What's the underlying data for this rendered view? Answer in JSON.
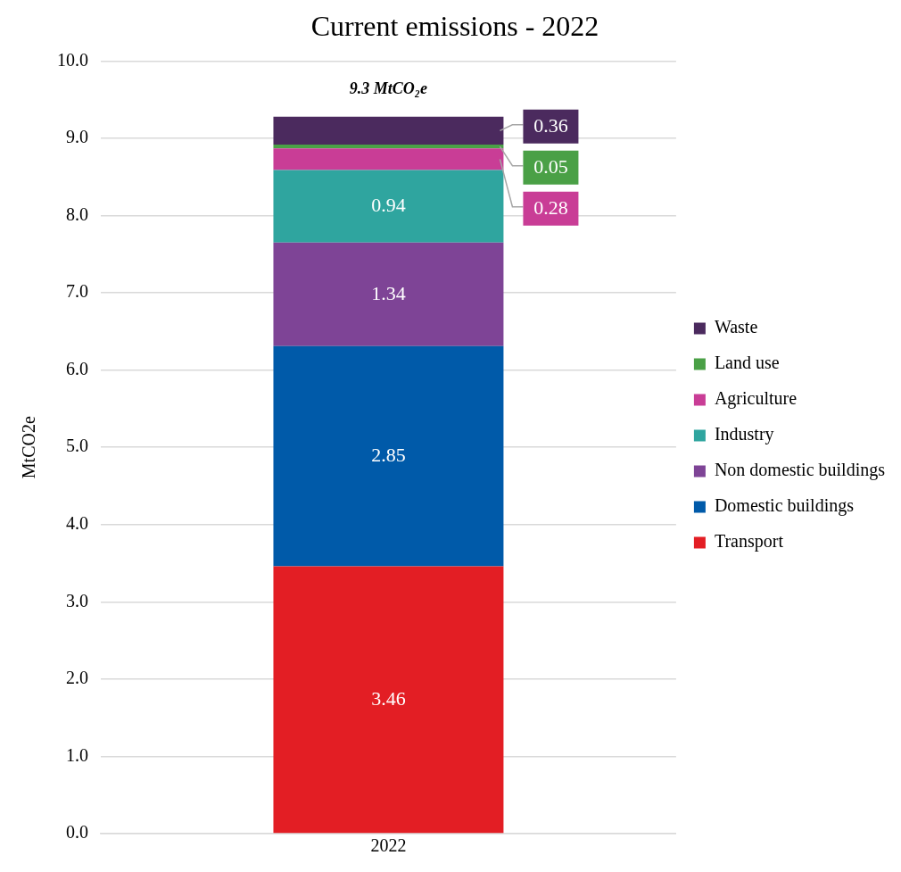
{
  "chart_data": {
    "type": "bar",
    "title": "Current emissions - 2022",
    "ylabel": "MtCO2e",
    "categories": [
      "2022"
    ],
    "stacked": true,
    "series": [
      {
        "name": "Transport",
        "color": "#e31e24",
        "values": [
          3.46
        ]
      },
      {
        "name": "Domestic buildings",
        "color": "#005aa9",
        "values": [
          2.85
        ]
      },
      {
        "name": "Non domestic buildings",
        "color": "#7e4496",
        "values": [
          1.34
        ]
      },
      {
        "name": "Industry",
        "color": "#2fa59f",
        "values": [
          0.94
        ]
      },
      {
        "name": "Agriculture",
        "color": "#c93d96",
        "values": [
          0.28
        ]
      },
      {
        "name": "Land use",
        "color": "#4aa046",
        "values": [
          0.05
        ]
      },
      {
        "name": "Waste",
        "color": "#4b2a5e",
        "values": [
          0.36
        ]
      }
    ],
    "ylim": [
      0,
      10
    ],
    "yticks": [
      {
        "value": 0,
        "label": "0.0"
      },
      {
        "value": 1,
        "label": "1.0"
      },
      {
        "value": 2,
        "label": "2.0"
      },
      {
        "value": 3,
        "label": "3.0"
      },
      {
        "value": 4,
        "label": "4.0"
      },
      {
        "value": 5,
        "label": "5.0"
      },
      {
        "value": 6,
        "label": "6.0"
      },
      {
        "value": 7,
        "label": "7.0"
      },
      {
        "value": 8,
        "label": "8.0"
      },
      {
        "value": 9,
        "label": "9.0"
      },
      {
        "value": 10,
        "label": "10.0"
      }
    ],
    "grid": "y",
    "legend": "right",
    "data_labels": true,
    "totals": [
      "9.3 MtCO₂e"
    ]
  }
}
